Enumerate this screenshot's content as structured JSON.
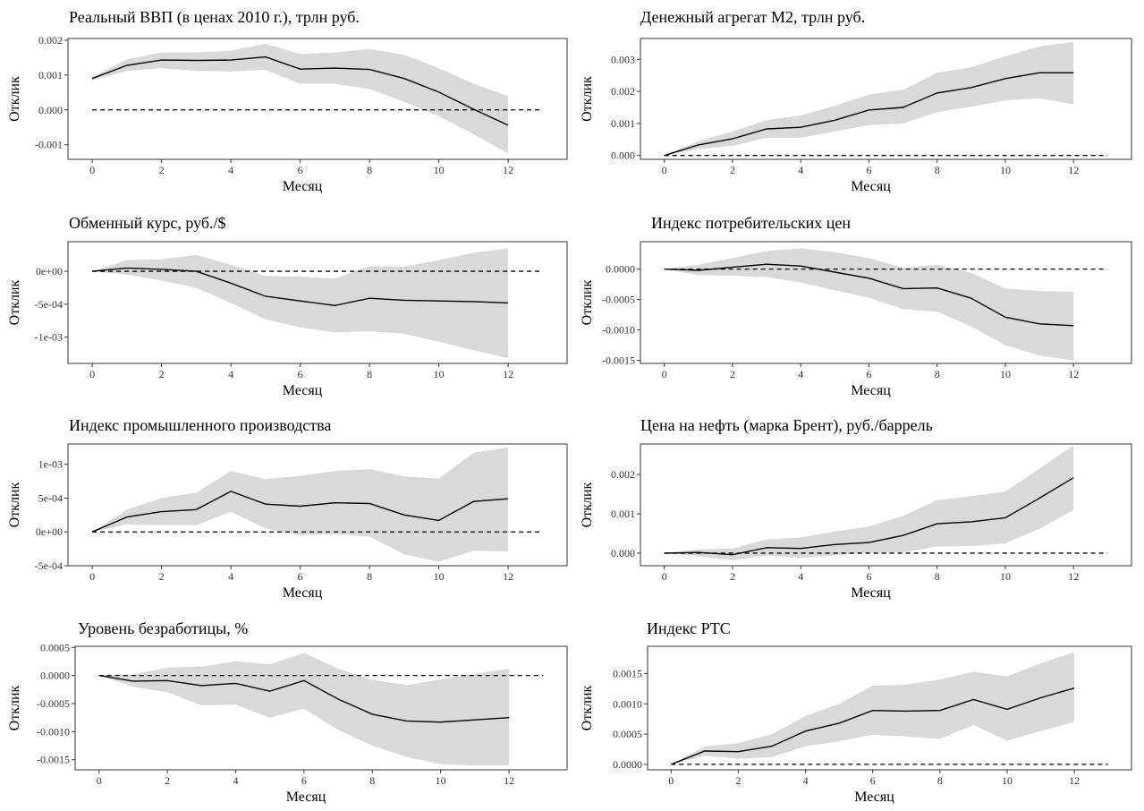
{
  "chart_data": [
    {
      "type": "line",
      "title": "Реальный ВВП (в ценах 2010 г.), трлн  руб.",
      "xlabel": "Месяц",
      "ylabel": "Отклик",
      "xlim": [
        -0.7,
        13.7
      ],
      "ylim": [
        -0.00142,
        0.00205
      ],
      "xticks": [
        0,
        2,
        4,
        6,
        8,
        10,
        12
      ],
      "yticks": [
        -0.001,
        0,
        0.001,
        0.002
      ],
      "yticklabels": [
        "-0.001",
        "0.000",
        "0.001",
        "0.002"
      ],
      "x": [
        0,
        1,
        2,
        3,
        4,
        5,
        6,
        7,
        8,
        9,
        10,
        11,
        12
      ],
      "series": [
        {
          "values": [
            0.0009,
            0.00128,
            0.00143,
            0.00142,
            0.00143,
            0.00152,
            0.00117,
            0.0012,
            0.00116,
            0.0009,
            0.00051,
            2e-05,
            -0.00044
          ]
        },
        {
          "band_upper": [
            0.00095,
            0.00145,
            0.00165,
            0.00165,
            0.0017,
            0.0019,
            0.0016,
            0.00165,
            0.00175,
            0.00158,
            0.0012,
            0.00075,
            0.0004
          ]
        },
        {
          "band_lower": [
            0.00085,
            0.00112,
            0.0012,
            0.00112,
            0.0011,
            0.00115,
            0.00075,
            0.00075,
            0.0006,
            0.00023,
            -0.00018,
            -0.0007,
            -0.00125
          ]
        }
      ],
      "zero_line": 0
    },
    {
      "type": "line",
      "title": "Денежный агрегат М2, трлн  руб.",
      "xlabel": "Месяц",
      "ylabel": "Отклик",
      "xlim": [
        -0.7,
        13.7
      ],
      "ylim": [
        -0.00012,
        0.00365
      ],
      "xticks": [
        0,
        2,
        4,
        6,
        8,
        10,
        12
      ],
      "yticks": [
        0,
        0.001,
        0.002,
        0.003
      ],
      "yticklabels": [
        "0.000",
        "0.001",
        "0.002",
        "0.003"
      ],
      "x": [
        0,
        1,
        2,
        3,
        4,
        5,
        6,
        7,
        8,
        9,
        10,
        11,
        12
      ],
      "series": [
        {
          "values": [
            0.0,
            0.00033,
            0.00052,
            0.00083,
            0.00088,
            0.0011,
            0.00142,
            0.0015,
            0.00195,
            0.00212,
            0.0024,
            0.00258,
            0.00258
          ]
        },
        {
          "band_upper": [
            0.0,
            0.00045,
            0.00075,
            0.0011,
            0.00125,
            0.00155,
            0.0019,
            0.00205,
            0.00258,
            0.00275,
            0.0031,
            0.0034,
            0.00355
          ]
        },
        {
          "band_lower": [
            0.0,
            0.0002,
            0.0003,
            0.00055,
            0.00055,
            0.00075,
            0.00095,
            0.001,
            0.00135,
            0.00152,
            0.00172,
            0.00178,
            0.0016
          ]
        }
      ],
      "zero_line": 0
    },
    {
      "type": "line",
      "title": "Обменный курс, руб./$",
      "xlabel": "Месяц",
      "ylabel": "Отклик",
      "xlim": [
        -0.7,
        13.7
      ],
      "ylim": [
        -0.0014,
        0.00045
      ],
      "xticks": [
        0,
        2,
        4,
        6,
        8,
        10,
        12
      ],
      "yticks": [
        -0.001,
        -0.0005,
        0
      ],
      "yticklabels": [
        "-1e-03",
        "-5e-04",
        "0e+00"
      ],
      "x": [
        0,
        1,
        2,
        3,
        4,
        5,
        6,
        7,
        8,
        9,
        10,
        11,
        12
      ],
      "series": [
        {
          "values": [
            0.0,
            5e-05,
            3e-05,
            0.0,
            -0.00018,
            -0.00038,
            -0.00045,
            -0.00052,
            -0.00041,
            -0.00044,
            -0.00045,
            -0.00046,
            -0.00048
          ]
        },
        {
          "band_upper": [
            0.0,
            0.00017,
            0.00018,
            0.00025,
            0.0001,
            -7e-05,
            -8e-05,
            -0.00011,
            8e-05,
            7e-05,
            0.00017,
            0.00028,
            0.00035
          ]
        },
        {
          "band_lower": [
            0.0,
            -5e-05,
            -0.00014,
            -0.00025,
            -0.00048,
            -0.00073,
            -0.00085,
            -0.00093,
            -0.00091,
            -0.00095,
            -0.00107,
            -0.0012,
            -0.00132
          ]
        }
      ],
      "zero_line": 0
    },
    {
      "type": "line",
      "title": "Индекс потребительских цен",
      "xlabel": "Месяц",
      "ylabel": "Отклик",
      "xlim": [
        -0.7,
        13.7
      ],
      "ylim": [
        -0.00155,
        0.00045
      ],
      "xticks": [
        0,
        2,
        4,
        6,
        8,
        10,
        12
      ],
      "yticks": [
        -0.0015,
        -0.001,
        -0.0005,
        0
      ],
      "yticklabels": [
        "-0.0015",
        "-0.0010",
        "-0.0005",
        "0.0000"
      ],
      "x": [
        0,
        1,
        2,
        3,
        4,
        5,
        6,
        7,
        8,
        9,
        10,
        11,
        12
      ],
      "series": [
        {
          "values": [
            0.0,
            -2e-05,
            3e-05,
            8e-05,
            5e-05,
            -5e-05,
            -0.00015,
            -0.00032,
            -0.00031,
            -0.00048,
            -0.00079,
            -0.0009,
            -0.00093
          ]
        },
        {
          "band_upper": [
            0.0,
            7e-05,
            0.00018,
            0.0003,
            0.00034,
            0.00028,
            0.00018,
            2e-05,
            7e-05,
            -6e-05,
            -0.00032,
            -0.00036,
            -0.00037
          ]
        },
        {
          "band_lower": [
            0.0,
            -0.0001,
            -0.00011,
            -0.00013,
            -0.00022,
            -0.00035,
            -0.00047,
            -0.00066,
            -0.0007,
            -0.00094,
            -0.00125,
            -0.00142,
            -0.0015
          ]
        }
      ],
      "zero_line": 0
    },
    {
      "type": "line",
      "title": "Индекс промышленного производства",
      "xlabel": "Месяц",
      "ylabel": "Отклик",
      "xlim": [
        -0.7,
        13.7
      ],
      "ylim": [
        -0.0005,
        0.0013
      ],
      "xticks": [
        0,
        2,
        4,
        6,
        8,
        10,
        12
      ],
      "yticks": [
        -0.0005,
        0,
        0.0005,
        0.001
      ],
      "yticklabels": [
        "-5e-04",
        "0e+00",
        "5e-04",
        "1e-03"
      ],
      "x": [
        0,
        1,
        2,
        3,
        4,
        5,
        6,
        7,
        8,
        9,
        10,
        11,
        12
      ],
      "series": [
        {
          "values": [
            0.0,
            0.00022,
            0.0003,
            0.00033,
            0.0006,
            0.00041,
            0.00038,
            0.00043,
            0.00042,
            0.00025,
            0.00017,
            0.00045,
            0.00049
          ]
        },
        {
          "band_upper": [
            0.0,
            0.00033,
            0.0005,
            0.00058,
            0.0009,
            0.00078,
            0.00083,
            0.0009,
            0.00093,
            0.00082,
            0.00079,
            0.00117,
            0.00125
          ]
        },
        {
          "band_lower": [
            0.0,
            0.00011,
            0.0001,
            0.0001,
            0.0003,
            5e-05,
            -5e-05,
            -3e-05,
            -7e-05,
            -0.00033,
            -0.00044,
            -0.00028,
            -0.00029
          ]
        }
      ],
      "zero_line": 0
    },
    {
      "type": "line",
      "title": "Цена на нефть (марка Брент), руб./баррель",
      "xlabel": "Месяц",
      "ylabel": "Отклик",
      "xlim": [
        -0.7,
        13.7
      ],
      "ylim": [
        -0.00032,
        0.00278
      ],
      "xticks": [
        0,
        2,
        4,
        6,
        8,
        10,
        12
      ],
      "yticks": [
        0,
        0.001,
        0.002
      ],
      "yticklabels": [
        "0.000",
        "0.001",
        "0.002"
      ],
      "x": [
        0,
        1,
        2,
        3,
        4,
        5,
        6,
        7,
        8,
        9,
        10,
        11,
        12
      ],
      "series": [
        {
          "values": [
            0.0,
            2e-05,
            -4e-05,
            0.00014,
            0.00012,
            0.00022,
            0.00027,
            0.00045,
            0.00075,
            0.0008,
            0.0009,
            0.0014,
            0.00192
          ]
        },
        {
          "band_upper": [
            0.0,
            0.0001,
            0.00012,
            0.00035,
            0.0004,
            0.00055,
            0.00068,
            0.00095,
            0.00135,
            0.00145,
            0.00157,
            0.00215,
            0.00275
          ]
        },
        {
          "band_lower": [
            0.0,
            -8e-05,
            -0.00018,
            -6e-05,
            -0.00012,
            -5e-05,
            1e-05,
            2e-05,
            0.00017,
            0.00018,
            0.00025,
            0.00062,
            0.0011
          ]
        }
      ],
      "zero_line": 0
    },
    {
      "type": "line",
      "title": "Уровень безработицы, %",
      "xlabel": "Месяц",
      "ylabel": "Отклик",
      "xlim": [
        -0.7,
        13.7
      ],
      "ylim": [
        -0.00168,
        0.00052
      ],
      "xticks": [
        0,
        2,
        4,
        6,
        8,
        10,
        12
      ],
      "yticks": [
        -0.0015,
        -0.001,
        -0.0005,
        0,
        0.0005
      ],
      "yticklabels": [
        "-0.0015",
        "-0.0010",
        "-0.0005",
        "0.0000",
        "0.0005"
      ],
      "x": [
        0,
        1,
        2,
        3,
        4,
        5,
        6,
        7,
        8,
        9,
        10,
        11,
        12
      ],
      "series": [
        {
          "values": [
            0.0,
            -0.0001,
            -9e-05,
            -0.00018,
            -0.00014,
            -0.00028,
            -9e-05,
            -0.00042,
            -0.00069,
            -0.00081,
            -0.00083,
            -0.00079,
            -0.00075
          ]
        },
        {
          "band_upper": [
            0.0,
            2e-05,
            0.00014,
            0.00016,
            0.00025,
            0.0002,
            0.0004,
            0.00012,
            -8e-05,
            -0.00017,
            -7e-05,
            3e-05,
            0.00012
          ]
        },
        {
          "band_lower": [
            0.0,
            -0.0002,
            -0.0003,
            -0.00053,
            -0.00052,
            -0.00075,
            -0.00059,
            -0.00097,
            -0.00125,
            -0.00145,
            -0.00158,
            -0.0016,
            -0.0016
          ]
        }
      ],
      "zero_line": 0
    },
    {
      "type": "line",
      "title": "Индекс РТС",
      "xlabel": "Месяц",
      "ylabel": "Отклик",
      "xlim": [
        -0.7,
        13.7
      ],
      "ylim": [
        -9e-05,
        0.00195
      ],
      "xticks": [
        0,
        2,
        4,
        6,
        8,
        10,
        12
      ],
      "yticks": [
        0,
        0.0005,
        0.001,
        0.0015
      ],
      "yticklabels": [
        "0.0000",
        "0.0005",
        "0.0010",
        "0.0015"
      ],
      "x": [
        0,
        1,
        2,
        3,
        4,
        5,
        6,
        7,
        8,
        9,
        10,
        11,
        12
      ],
      "series": [
        {
          "values": [
            0.0,
            0.00022,
            0.00021,
            0.0003,
            0.00055,
            0.00068,
            0.00089,
            0.00088,
            0.00089,
            0.00107,
            0.00091,
            0.0011,
            0.00126
          ]
        },
        {
          "band_upper": [
            0.0,
            0.0003,
            0.00035,
            0.0005,
            0.0008,
            0.001,
            0.0013,
            0.00132,
            0.0014,
            0.00153,
            0.00145,
            0.00167,
            0.00185
          ]
        },
        {
          "band_lower": [
            0.0,
            0.00014,
            9e-05,
            0.00012,
            0.0003,
            0.00038,
            0.00049,
            0.00046,
            0.00042,
            0.00065,
            0.00039,
            0.00055,
            0.0007
          ]
        }
      ],
      "zero_line": 0
    }
  ],
  "colors": {
    "band": "#d9d9d9",
    "line": "#000000",
    "zero_line": "#000000",
    "frame": "#333333"
  }
}
